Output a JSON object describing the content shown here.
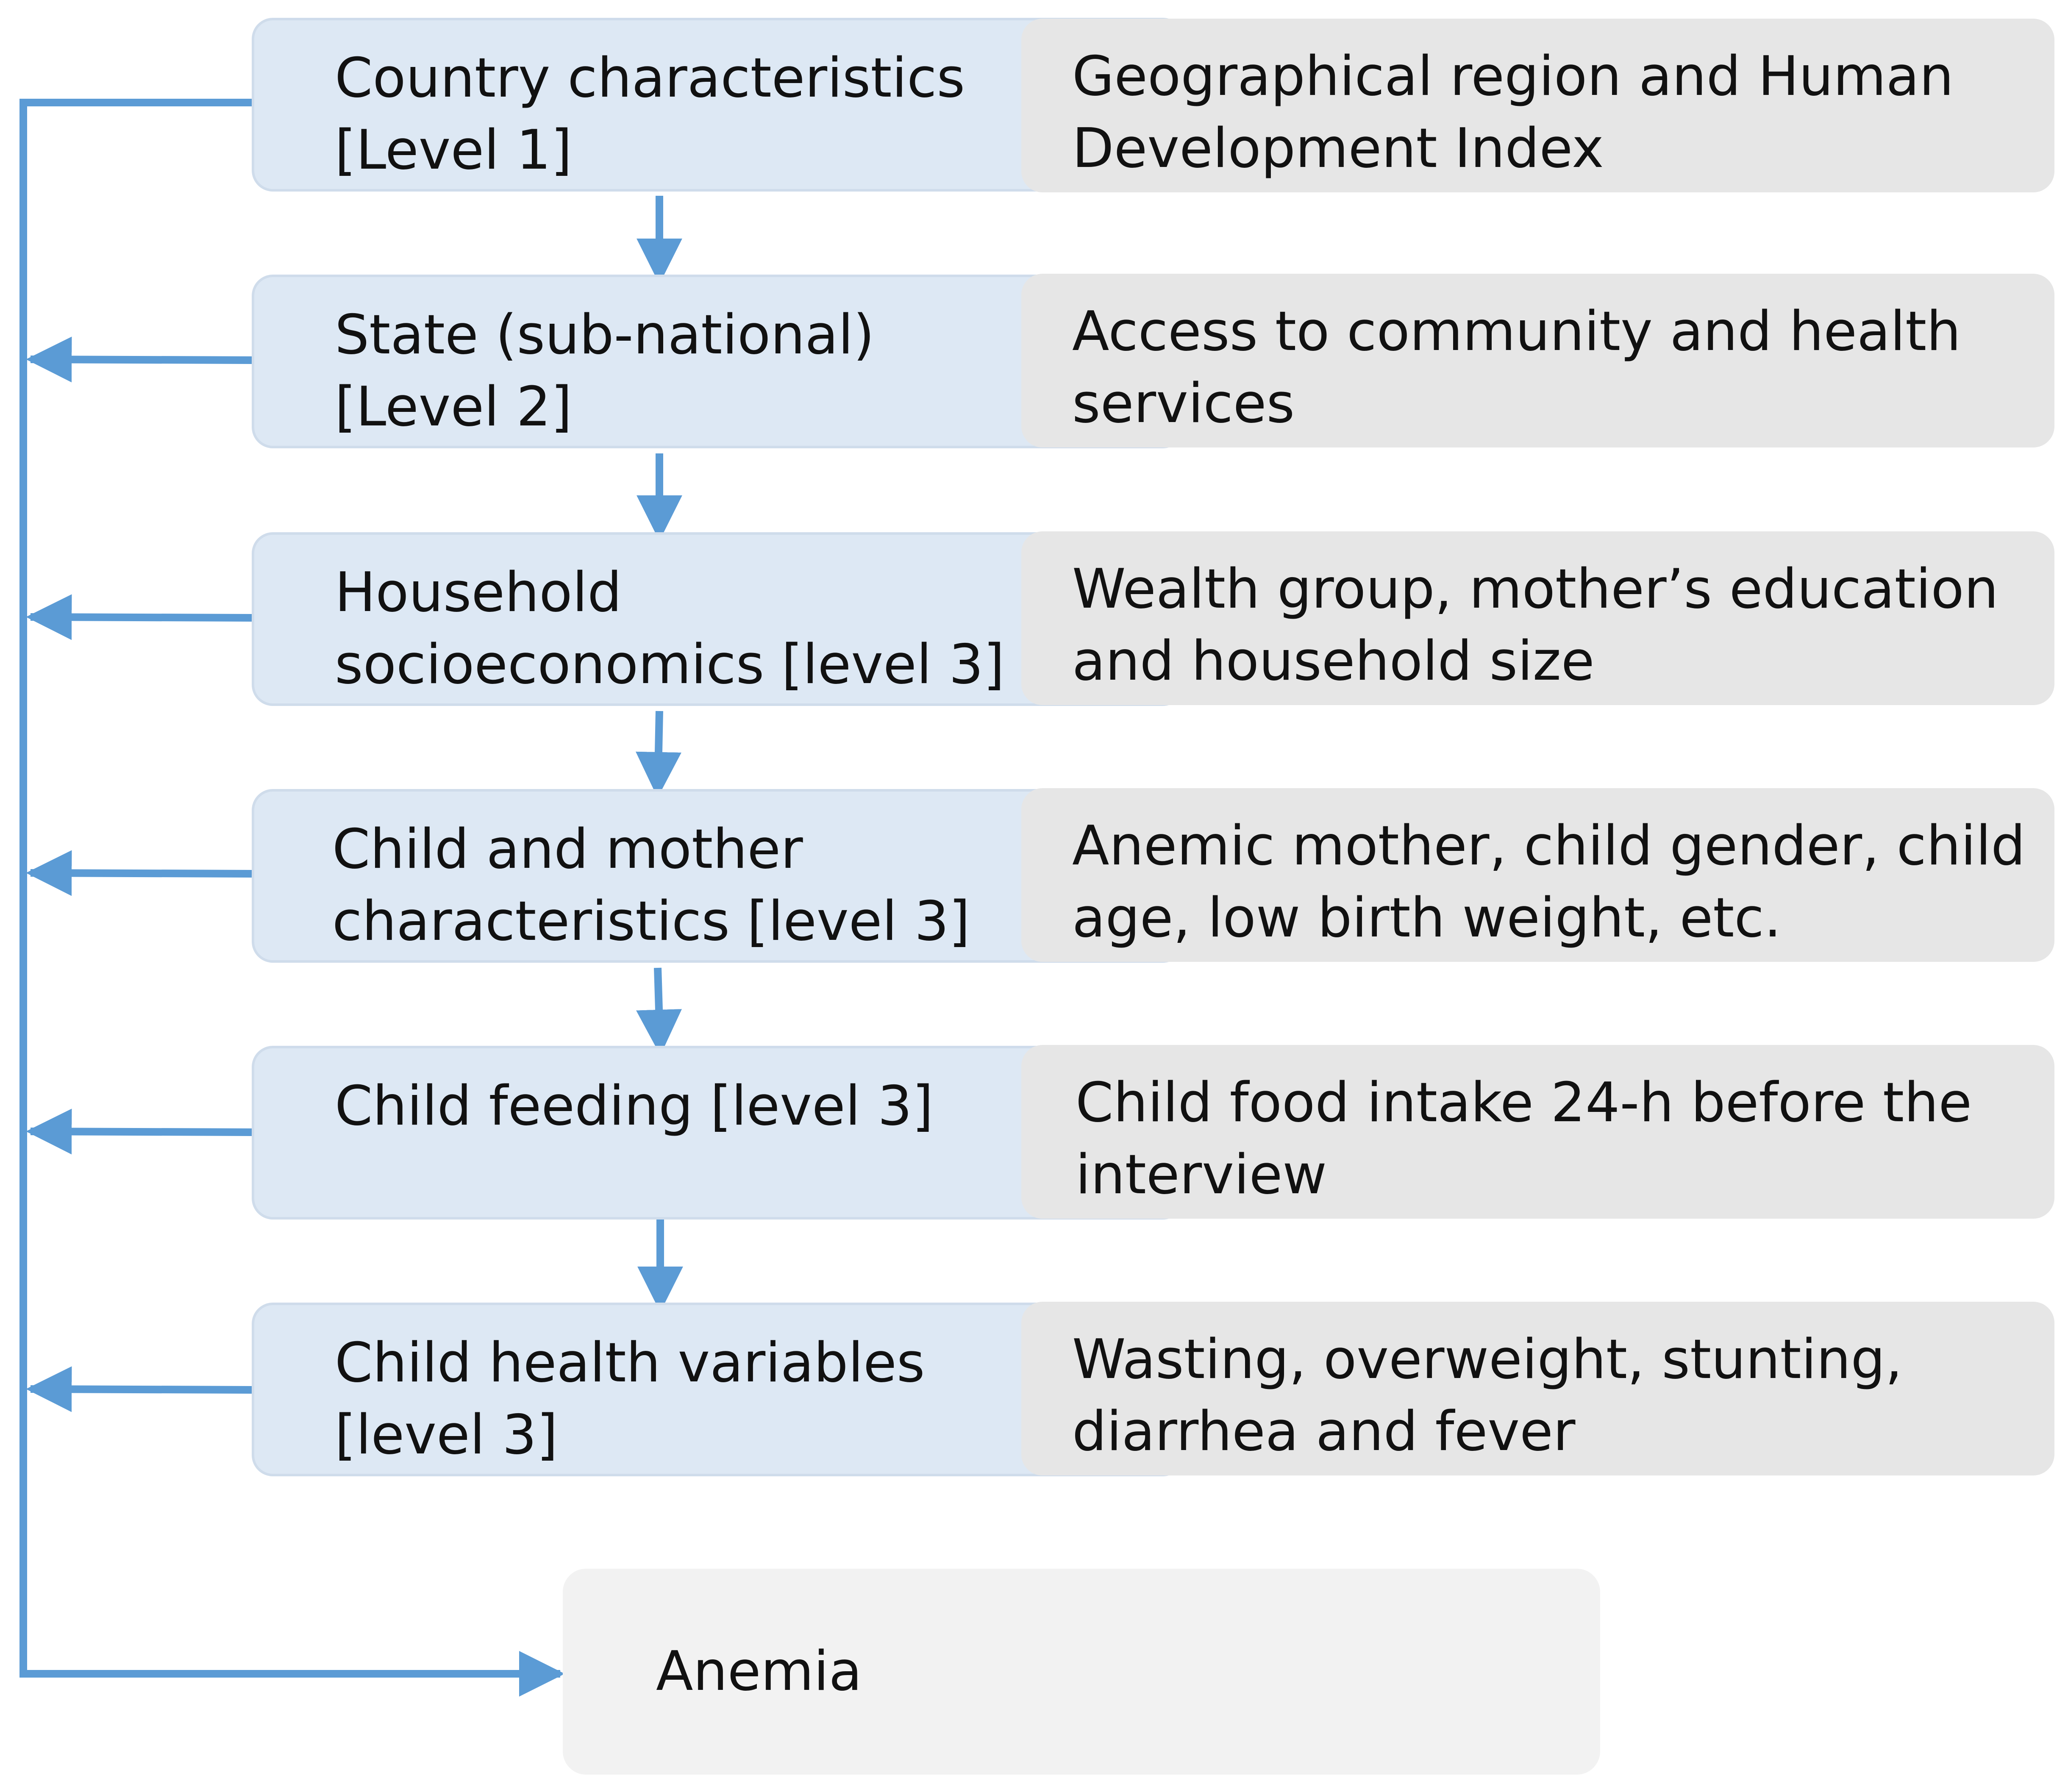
{
  "levels": [
    {
      "label": "Country characteristics\n[Level 1]",
      "detail": "Geographical region and Human\nDevelopment Index"
    },
    {
      "label": "State (sub-national)\n[Level 2]",
      "detail": "Access to community and health\nservices"
    },
    {
      "label": "Household\nsocioeconomics [level 3]",
      "detail": "Wealth group, mother’s education\nand household size"
    },
    {
      "label": "Child and mother\ncharacteristics [level 3]",
      "detail": "Anemic mother,  child gender, child\nage, low birth weight, etc."
    },
    {
      "label": "Child feeding [level 3]",
      "detail": "Child food intake 24-h before the\ninterview"
    },
    {
      "label": "Child health variables\n[level 3]",
      "detail": "Wasting, overweight, stunting,\ndiarrhea and fever"
    }
  ],
  "outcome": "Anemia",
  "colors": {
    "level_box": "#dde8f4",
    "level_border": "#cfdceb",
    "detail_box": "#e6e6e6",
    "outcome_box": "#f2f2f2",
    "arrow": "#5b9bd5"
  }
}
